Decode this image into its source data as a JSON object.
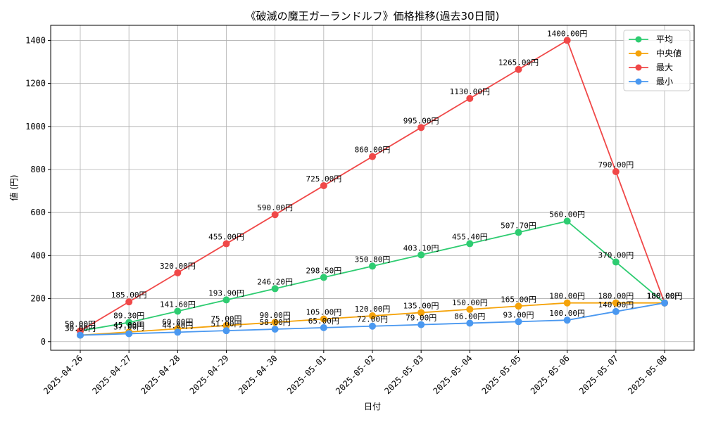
{
  "chart_data": {
    "type": "line",
    "title": "《破滅の魔王ガーランドルフ》価格推移(過去30日間)",
    "xlabel": "日付",
    "ylabel": "値 (円)",
    "x": [
      "2025-04-26",
      "2025-04-27",
      "2025-04-28",
      "2025-04-29",
      "2025-04-30",
      "2025-05-01",
      "2025-05-02",
      "2025-05-03",
      "2025-05-04",
      "2025-05-05",
      "2025-05-06",
      "2025-05-07",
      "2025-05-08"
    ],
    "ylim": [
      -40,
      1470
    ],
    "yticks": [
      0,
      200,
      400,
      600,
      800,
      1000,
      1200,
      1400
    ],
    "grid": true,
    "legend_position": "top-right",
    "series": [
      {
        "name": "平均",
        "color": "#2ecc71",
        "values": [
          50,
          89.3,
          141.6,
          193.9,
          246.2,
          298.5,
          350.8,
          403.1,
          455.4,
          507.7,
          560,
          370,
          180
        ],
        "labels": [
          "50.00円",
          "89.30円",
          "141.60円",
          "193.90円",
          "246.20円",
          "298.50円",
          "350.80円",
          "403.10円",
          "455.40円",
          "507.70円",
          "560.00円",
          "370.00円",
          "180.00円"
        ]
      },
      {
        "name": "中央値",
        "color": "#f5a30a",
        "values": [
          30,
          45,
          60,
          75,
          90,
          105,
          120,
          135,
          150,
          165,
          180,
          180,
          180
        ],
        "labels": [
          "30.00円",
          "45.00円",
          "60.00円",
          "75.00円",
          "90.00円",
          "105.00円",
          "120.00円",
          "135.00円",
          "150.00円",
          "165.00円",
          "180.00円",
          "180.00円",
          "180.00円"
        ]
      },
      {
        "name": "最大",
        "color": "#f04848",
        "values": [
          50,
          185,
          320,
          455,
          590,
          725,
          860,
          995,
          1130,
          1265,
          1400,
          790,
          180
        ],
        "labels": [
          "50.00円",
          "185.00円",
          "320.00円",
          "455.00円",
          "590.00円",
          "725.00円",
          "860.00円",
          "995.00円",
          "1130.00円",
          "1265.00円",
          "1400.00円",
          "790.00円",
          "180.00円"
        ]
      },
      {
        "name": "最小",
        "color": "#4a98f0",
        "values": [
          30,
          37,
          44,
          51,
          58,
          65,
          72,
          79,
          86,
          93,
          100,
          140,
          180
        ],
        "labels": [
          "30.00円",
          "37.00円",
          "44.00円",
          "51.00円",
          "58.00円",
          "65.00円",
          "72.00円",
          "79.00円",
          "86.00円",
          "93.00円",
          "100.00円",
          "140.00円",
          "180.00円"
        ]
      }
    ]
  }
}
